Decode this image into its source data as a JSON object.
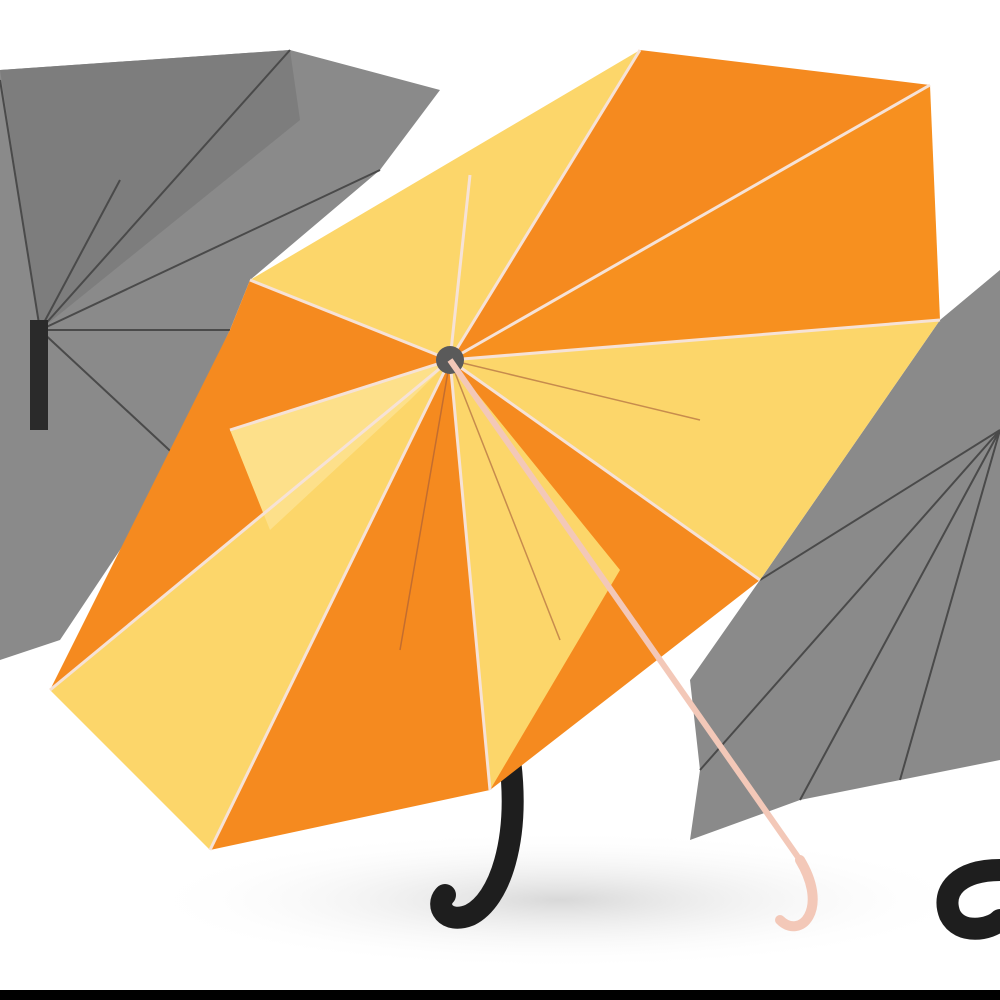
{
  "scene": {
    "subject": "umbrellas",
    "colors": {
      "background": "#ffffff",
      "grey_canopy": "#8c8c8c",
      "grey_canopy_dark": "#6e6e6e",
      "orange_panel": "#f58a1f",
      "yellow_panel": "#fcd66a",
      "rib": "#f6e2d6",
      "handle_black": "#1e1e1e",
      "bottom_bar": "#000000"
    }
  }
}
